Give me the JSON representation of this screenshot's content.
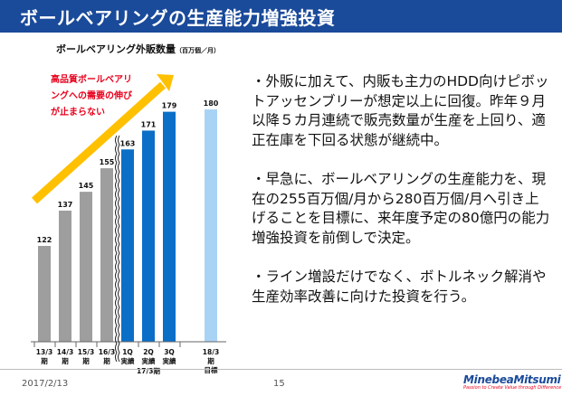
{
  "header": {
    "title": "ボールベアリングの生産能力増強投資"
  },
  "chart_data": {
    "type": "bar",
    "title": "ボールベアリング外販数量",
    "unit": "（百万個／月）",
    "categories": [
      "13/3期",
      "14/3期",
      "15/3期",
      "16/3期",
      "1Q実績",
      "2Q実績",
      "3Q実績",
      "18/3期目標"
    ],
    "category_lines": [
      [
        "13/3",
        "期"
      ],
      [
        "14/3",
        "期"
      ],
      [
        "15/3",
        "期"
      ],
      [
        "16/3",
        "期"
      ],
      [
        "1Q",
        "実績"
      ],
      [
        "2Q",
        "実績"
      ],
      [
        "3Q",
        "実績"
      ],
      [
        "18/3",
        "期",
        "目標"
      ]
    ],
    "group_label": "17/3期",
    "values": [
      122,
      137,
      145,
      155,
      163,
      171,
      179,
      180
    ],
    "value_labels": [
      "122",
      "137",
      "145",
      "155",
      "163",
      "171",
      "179",
      "180"
    ],
    "bar_colors": [
      "#9e9e9e",
      "#9e9e9e",
      "#9e9e9e",
      "#9e9e9e",
      "#0b6fc7",
      "#0b6fc7",
      "#0b6fc7",
      "#a9d3f5"
    ],
    "axis_break": true,
    "grid": false,
    "annotation": [
      "高品質ボールベアリ",
      "ングへの需要の伸び",
      "が止まらない"
    ],
    "trend_arrow_color": "#ffc000"
  },
  "bullets": [
    "・外販に加えて、内販も主力のHDD向けピボットアッセンブリーが想定以上に回復。昨年９月以降５カ月連続で販売数量が生産を上回り、適正在庫を下回る状態が継続中。",
    "・早急に、ボールベアリングの生産能力を、現在の255百万個/月から280百万個/月へ引き上げることを目標に、来年度予定の80億円の能力増強投資を前倒しで決定。",
    "・ライン増設だけでなく、ボトルネック解消や生産効率改善に向けた投資を行う。"
  ],
  "footer": {
    "date": "2017/2/13",
    "page": "15",
    "logo_name": "MinebeaMitsumi",
    "logo_tagline": "Passion to Create Value through Difference"
  },
  "colors": {
    "header_bg": "#1a4a9a",
    "accent_red": "#e8001c",
    "bar_gray": "#9e9e9e",
    "bar_blue": "#0b6fc7",
    "bar_light_blue": "#a9d3f5"
  }
}
